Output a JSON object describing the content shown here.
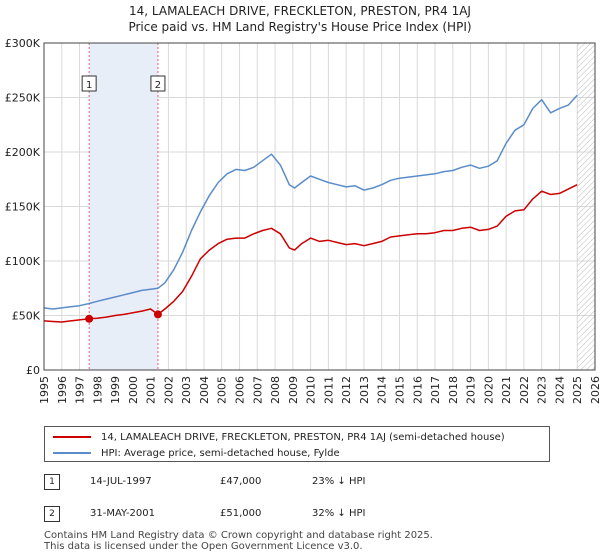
{
  "title_line1": "14, LAMALEACH DRIVE, FRECKLETON, PRESTON, PR4 1AJ",
  "title_line2": "Price paid vs. HM Land Registry's House Price Index (HPI)",
  "chart_data": {
    "type": "line",
    "title": "14, LAMALEACH DRIVE, FRECKLETON, PRESTON, PR4 1AJ — Price paid vs. HM Land Registry's House Price Index (HPI)",
    "xlabel": "",
    "ylabel": "",
    "xlim": [
      1995,
      2026
    ],
    "ylim": [
      0,
      300000
    ],
    "y_ticks": [
      0,
      50000,
      100000,
      150000,
      200000,
      250000,
      300000
    ],
    "y_tick_labels": [
      "£0",
      "£50K",
      "£100K",
      "£150K",
      "£200K",
      "£250K",
      "£300K"
    ],
    "x_ticks": [
      1995,
      1996,
      1997,
      1998,
      1999,
      2000,
      2001,
      2002,
      2003,
      2004,
      2005,
      2006,
      2007,
      2008,
      2009,
      2010,
      2011,
      2012,
      2013,
      2014,
      2015,
      2016,
      2017,
      2018,
      2019,
      2020,
      2021,
      2022,
      2023,
      2024,
      2025,
      2026
    ],
    "x_tick_labels": [
      "1995",
      "1996",
      "1997",
      "1998",
      "1999",
      "2000",
      "2001",
      "2002",
      "2003",
      "2004",
      "2005",
      "2006",
      "2007",
      "2008",
      "2009",
      "2010",
      "2011",
      "2012",
      "2013",
      "2014",
      "2015",
      "2016",
      "2017",
      "2018",
      "2019",
      "2020",
      "2021",
      "2022",
      "2023",
      "2024",
      "2025",
      "2026"
    ],
    "grid": true,
    "shaded_region": [
      1997.54,
      2001.41
    ],
    "future_hatch_from": 2025.0,
    "series": [
      {
        "name": "14, LAMALEACH DRIVE, FRECKLETON, PRESTON, PR4 1AJ (semi-detached house)",
        "color": "#cc0000",
        "x": [
          1995.0,
          1995.5,
          1996.0,
          1996.5,
          1997.0,
          1997.54,
          1998.0,
          1998.5,
          1999.0,
          1999.5,
          2000.0,
          2000.5,
          2001.0,
          2001.41,
          2001.8,
          2002.3,
          2002.8,
          2003.3,
          2003.8,
          2004.3,
          2004.8,
          2005.3,
          2005.8,
          2006.3,
          2006.8,
          2007.3,
          2007.8,
          2008.3,
          2008.8,
          2009.1,
          2009.5,
          2010.0,
          2010.5,
          2011.0,
          2011.5,
          2012.0,
          2012.5,
          2013.0,
          2013.5,
          2014.0,
          2014.5,
          2015.0,
          2015.5,
          2016.0,
          2016.5,
          2017.0,
          2017.5,
          2018.0,
          2018.5,
          2019.0,
          2019.5,
          2020.0,
          2020.5,
          2021.0,
          2021.5,
          2022.0,
          2022.5,
          2023.0,
          2023.5,
          2024.0,
          2024.5,
          2025.0
        ],
        "y": [
          45000,
          44500,
          44000,
          45000,
          46000,
          47000,
          47500,
          48500,
          50000,
          51000,
          52500,
          54000,
          56000,
          51000,
          56000,
          63000,
          72000,
          86000,
          102000,
          110000,
          116000,
          120000,
          121000,
          121000,
          125000,
          128000,
          130000,
          125000,
          112000,
          110000,
          116000,
          121000,
          118000,
          119000,
          117000,
          115000,
          116000,
          114000,
          116000,
          118000,
          122000,
          123000,
          124000,
          125000,
          125000,
          126000,
          128000,
          128000,
          130000,
          131000,
          128000,
          129000,
          132000,
          141000,
          146000,
          147000,
          157000,
          164000,
          161000,
          162000,
          166000,
          170000
        ]
      },
      {
        "name": "HPI: Average price, semi-detached house, Fylde",
        "color": "#5b8cc8",
        "x": [
          1995.0,
          1995.5,
          1996.0,
          1996.5,
          1997.0,
          1997.54,
          1998.0,
          1998.5,
          1999.0,
          1999.5,
          2000.0,
          2000.5,
          2001.0,
          2001.41,
          2001.8,
          2002.3,
          2002.8,
          2003.3,
          2003.8,
          2004.3,
          2004.8,
          2005.3,
          2005.8,
          2006.3,
          2006.8,
          2007.3,
          2007.8,
          2008.3,
          2008.8,
          2009.1,
          2009.5,
          2010.0,
          2010.5,
          2011.0,
          2011.5,
          2012.0,
          2012.5,
          2013.0,
          2013.5,
          2014.0,
          2014.5,
          2015.0,
          2015.5,
          2016.0,
          2016.5,
          2017.0,
          2017.5,
          2018.0,
          2018.5,
          2019.0,
          2019.5,
          2020.0,
          2020.5,
          2021.0,
          2021.5,
          2022.0,
          2022.5,
          2023.0,
          2023.5,
          2024.0,
          2024.5,
          2025.0
        ],
        "y": [
          57000,
          56000,
          57000,
          58000,
          59000,
          61000,
          63000,
          65000,
          67000,
          69000,
          71000,
          73000,
          74000,
          75000,
          80000,
          92000,
          108000,
          128000,
          145000,
          160000,
          172000,
          180000,
          184000,
          183000,
          186000,
          192000,
          198000,
          188000,
          170000,
          167000,
          172000,
          178000,
          175000,
          172000,
          170000,
          168000,
          169000,
          165000,
          167000,
          170000,
          174000,
          176000,
          177000,
          178000,
          179000,
          180000,
          182000,
          183000,
          186000,
          188000,
          185000,
          187000,
          192000,
          208000,
          220000,
          225000,
          240000,
          248000,
          236000,
          240000,
          243000,
          252000
        ]
      }
    ],
    "annotations": [
      {
        "label": "1",
        "x": 1997.54,
        "y": 47000
      },
      {
        "label": "2",
        "x": 2001.41,
        "y": 51000
      }
    ]
  },
  "legend": {
    "series1_label": "14, LAMALEACH DRIVE, FRECKLETON, PRESTON, PR4 1AJ (semi-detached house)",
    "series2_label": "HPI: Average price, semi-detached house, Fylde",
    "series1_color": "#cc0000",
    "series2_color": "#5b8cc8"
  },
  "transactions": [
    {
      "num": "1",
      "date": "14-JUL-1997",
      "price": "£47,000",
      "hpi": "23% ↓ HPI"
    },
    {
      "num": "2",
      "date": "31-MAY-2001",
      "price": "£51,000",
      "hpi": "32% ↓ HPI"
    }
  ],
  "footer": {
    "line1": "Contains HM Land Registry data © Crown copyright and database right 2025.",
    "line2": "This data is licensed under the Open Government Licence v3.0."
  }
}
